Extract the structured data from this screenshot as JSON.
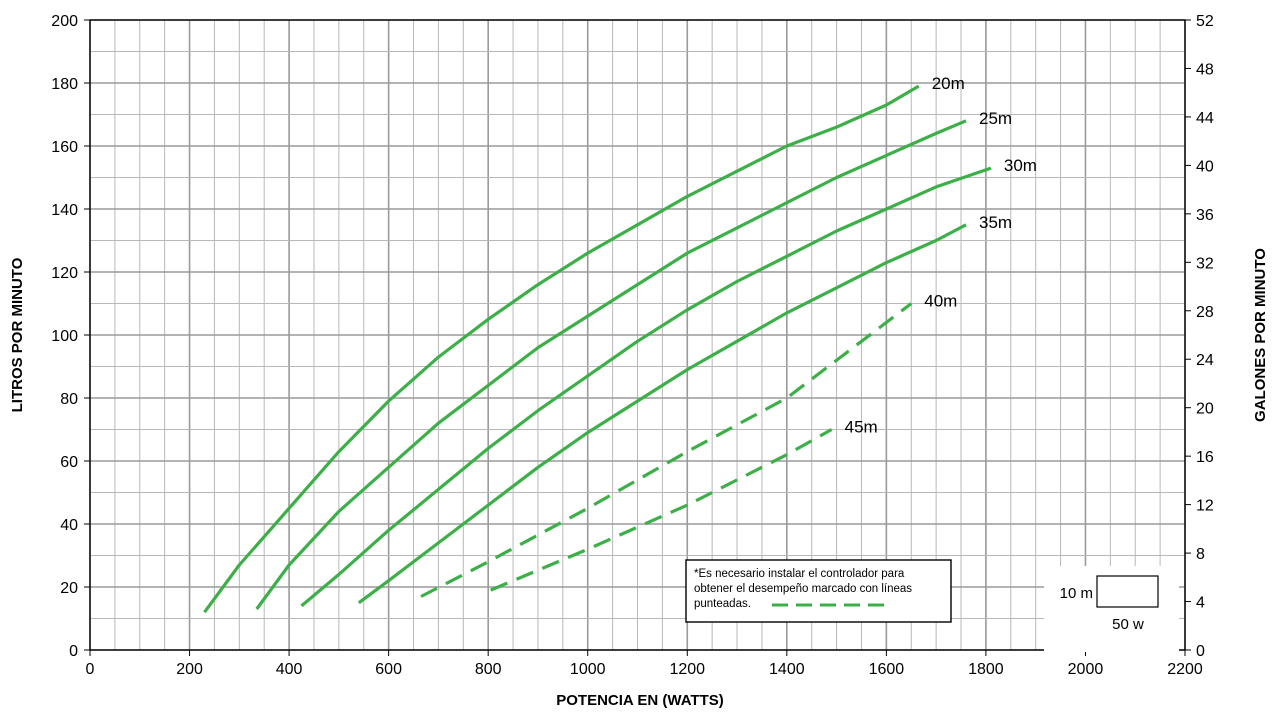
{
  "chart_data": {
    "type": "line",
    "xlabel": "POTENCIA EN (WATTS)",
    "ylabel": "LITROS POR MINUTO",
    "ylabel_right": "GALONES POR MINUTO",
    "xlim": [
      0,
      2200
    ],
    "ylim": [
      0,
      200
    ],
    "ylim_right": [
      0,
      52
    ],
    "x_ticks": [
      0,
      200,
      400,
      600,
      800,
      1000,
      1200,
      1400,
      1600,
      1800,
      2000,
      2200
    ],
    "y_ticks": [
      0,
      20,
      40,
      60,
      80,
      100,
      120,
      140,
      160,
      180,
      200
    ],
    "y_right_ticks": [
      0,
      4,
      8,
      12,
      16,
      20,
      24,
      28,
      32,
      36,
      40,
      44,
      48,
      52
    ],
    "grid": true,
    "series": [
      {
        "name": "20m",
        "style": "solid",
        "x": [
          230,
          300,
          400,
          500,
          600,
          700,
          800,
          900,
          1000,
          1100,
          1200,
          1300,
          1400,
          1500,
          1600,
          1665
        ],
        "y": [
          12,
          27,
          45,
          63,
          79,
          93,
          105,
          116,
          126,
          135,
          144,
          152,
          160,
          166,
          173,
          179
        ]
      },
      {
        "name": "25m",
        "style": "solid",
        "x": [
          335,
          400,
          500,
          600,
          700,
          800,
          900,
          1000,
          1100,
          1200,
          1300,
          1400,
          1500,
          1600,
          1700,
          1760
        ],
        "y": [
          13,
          27,
          44,
          58,
          72,
          84,
          96,
          106,
          116,
          126,
          134,
          142,
          150,
          157,
          164,
          168
        ]
      },
      {
        "name": "30m",
        "style": "solid",
        "x": [
          425,
          500,
          600,
          700,
          800,
          900,
          1000,
          1100,
          1200,
          1300,
          1400,
          1500,
          1600,
          1700,
          1810
        ],
        "y": [
          14,
          24,
          38,
          51,
          64,
          76,
          87,
          98,
          108,
          117,
          125,
          133,
          140,
          147,
          153
        ]
      },
      {
        "name": "35m",
        "style": "solid",
        "x": [
          540,
          600,
          700,
          800,
          900,
          1000,
          1100,
          1200,
          1300,
          1400,
          1500,
          1600,
          1700,
          1760
        ],
        "y": [
          15,
          22,
          34,
          46,
          58,
          69,
          79,
          89,
          98,
          107,
          115,
          123,
          130,
          135
        ]
      },
      {
        "name": "40m",
        "style": "dashed",
        "x": [
          665,
          800,
          1000,
          1200,
          1400,
          1650
        ],
        "y": [
          17,
          28,
          45,
          63,
          80,
          110
        ]
      },
      {
        "name": "45m",
        "style": "dashed",
        "x": [
          805,
          1000,
          1200,
          1400,
          1490
        ],
        "y": [
          19,
          32,
          46,
          62,
          70
        ]
      }
    ],
    "color": "#3daf49",
    "note": {
      "lines": [
        "*Es necesario instalar el controlador para",
        "obtener el desempeño marcado con líneas",
        "punteadas."
      ]
    },
    "scale_key": {
      "vertical": "10 m",
      "horizontal": "50 w"
    }
  }
}
